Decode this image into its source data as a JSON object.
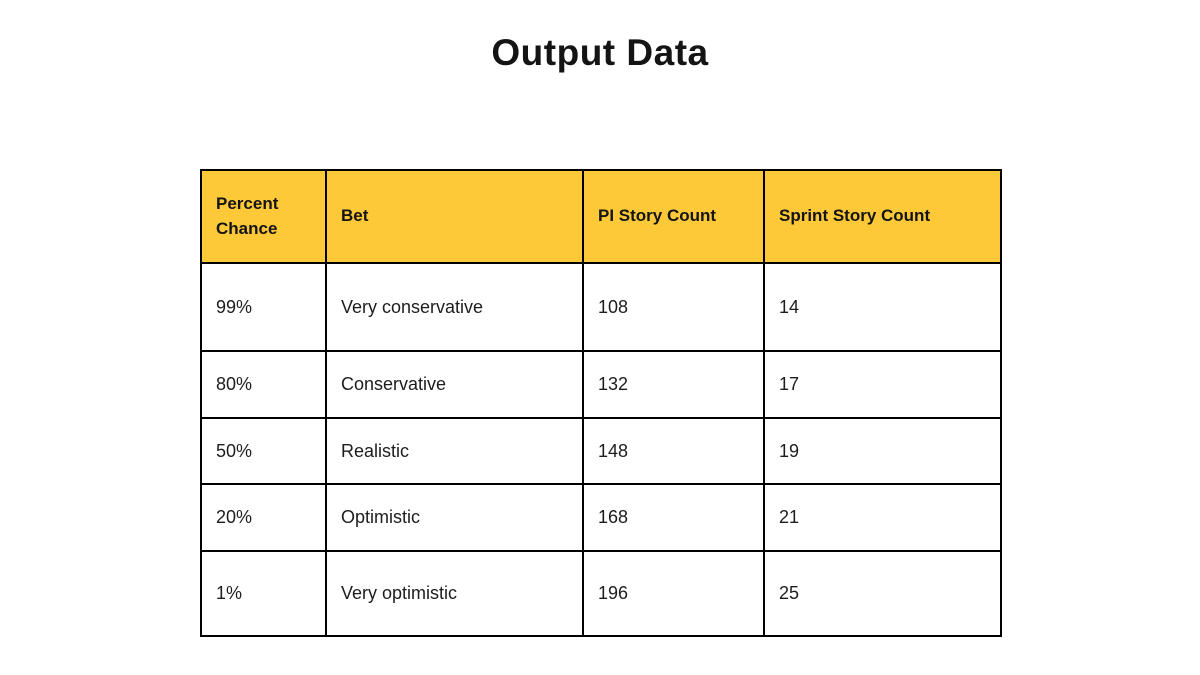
{
  "page": {
    "title": "Output Data",
    "background_color": "#ffffff"
  },
  "table": {
    "header_background_color": "#FDC938",
    "border_color": "#000000",
    "columns": [
      "Percent Chance",
      "Bet",
      "PI Story Count",
      "Sprint Story Count"
    ],
    "rows": [
      {
        "percent_chance": "99%",
        "bet": "Very conservative",
        "pi_story_count": "108",
        "sprint_story_count": "14"
      },
      {
        "percent_chance": "80%",
        "bet": "Conservative",
        "pi_story_count": "132",
        "sprint_story_count": "17"
      },
      {
        "percent_chance": "50%",
        "bet": "Realistic",
        "pi_story_count": "148",
        "sprint_story_count": "19"
      },
      {
        "percent_chance": "20%",
        "bet": "Optimistic",
        "pi_story_count": "168",
        "sprint_story_count": "21"
      },
      {
        "percent_chance": "1%",
        "bet": "Very optimistic",
        "pi_story_count": "196",
        "sprint_story_count": "25"
      }
    ]
  }
}
